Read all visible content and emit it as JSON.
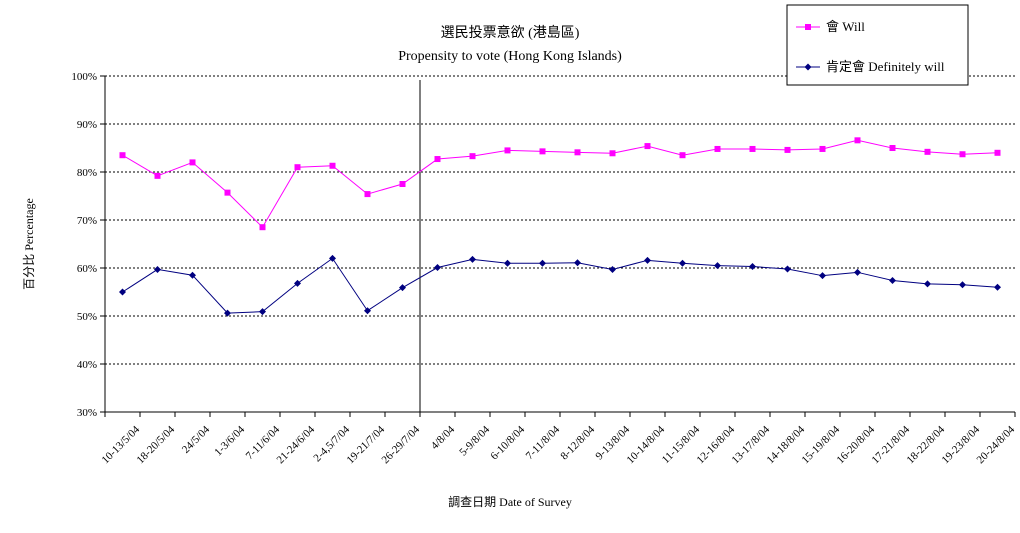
{
  "chart_data": {
    "type": "line",
    "title": "選民投票意欲 (港島區)",
    "subtitle": "Propensity to vote (Hong Kong Islands)",
    "xlabel": "調查日期 Date of Survey",
    "ylabel": "百分比 Percentage",
    "ylim": [
      30,
      100
    ],
    "y_ticks": [
      "30%",
      "40%",
      "50%",
      "60%",
      "70%",
      "80%",
      "90%",
      "100%"
    ],
    "y_tick_values": [
      30,
      40,
      50,
      60,
      70,
      80,
      90,
      100
    ],
    "grid": true,
    "legend_position": "top-right",
    "categories": [
      "10-13/5/04",
      "18-20/5/04",
      "24/5/04",
      "1-3/6/04",
      "7-11/6/04",
      "21-24/6/04",
      "2-4,5/7/04",
      "19-21/7/04",
      "26-29/7/04",
      "4/8/04",
      "5-9/8/04",
      "6-10/8/04",
      "7-11/8/04",
      "8-12/8/04",
      "9-13/8/04",
      "10-14/8/04",
      "11-15/8/04",
      "12-16/8/04",
      "13-17/8/04",
      "14-18/8/04",
      "15-19/8/04",
      "16-20/8/04",
      "17-21/8/04",
      "18-22/8/04",
      "19-23/8/04",
      "20-24/8/04"
    ],
    "series": [
      {
        "name": "會 Will",
        "color": "#ff00ff",
        "marker": "square",
        "values": [
          83.5,
          79.2,
          82.0,
          75.7,
          68.5,
          81.0,
          81.3,
          75.4,
          77.5,
          82.7,
          83.3,
          84.5,
          84.3,
          84.1,
          83.9,
          85.4,
          83.5,
          84.8,
          84.8,
          84.6,
          84.8,
          86.6,
          85.0,
          84.2,
          83.7,
          84.0
        ]
      },
      {
        "name": "肯定會 Definitely will",
        "color": "#000080",
        "marker": "diamond",
        "values": [
          55.0,
          59.7,
          58.5,
          50.6,
          50.9,
          56.8,
          62.0,
          51.1,
          55.9,
          60.1,
          61.8,
          61.0,
          61.0,
          61.1,
          59.7,
          61.6,
          61.0,
          60.5,
          60.3,
          59.8,
          58.4,
          59.1,
          57.4,
          56.7,
          56.5,
          56.0
        ]
      }
    ],
    "divider_after_category": "26-29/7/04"
  }
}
